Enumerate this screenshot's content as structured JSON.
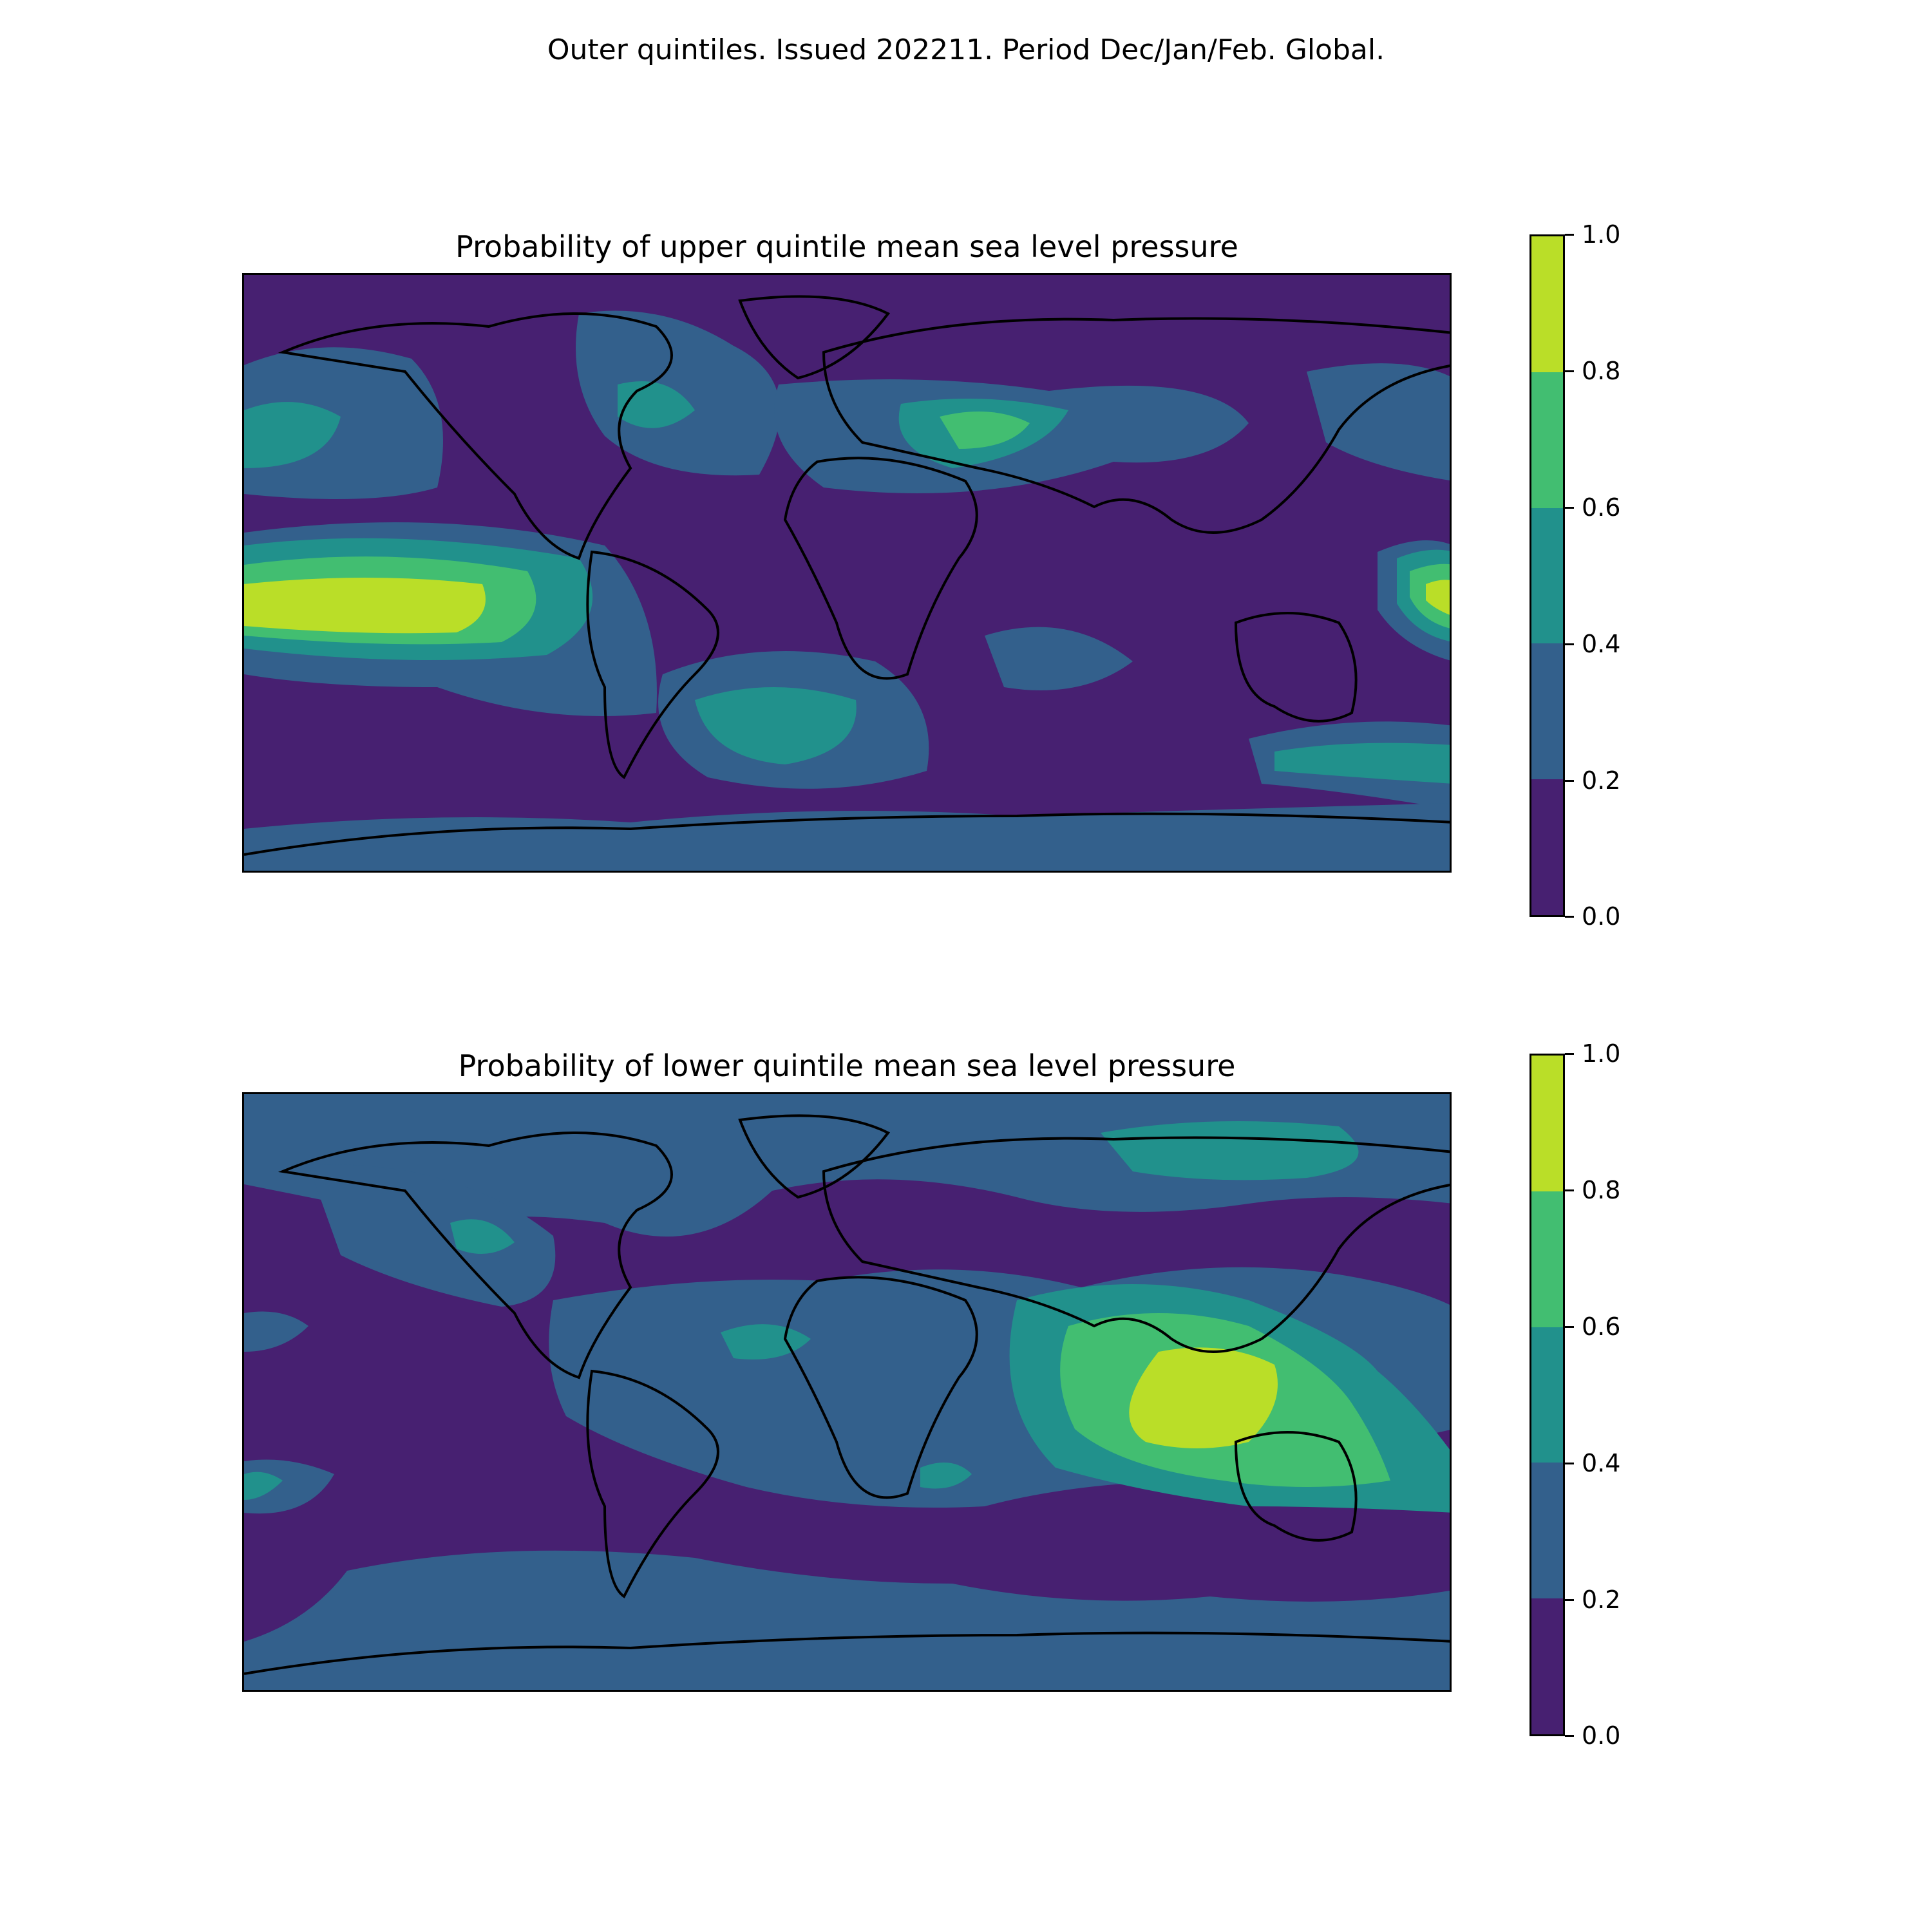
{
  "suptitle": "Outer quintiles. Issued 202211. Period Dec/Jan/Feb. Global.",
  "colors": {
    "bin_0_02": "#472071",
    "bin_02_04": "#33608c",
    "bin_04_06": "#21918c",
    "bin_06_08": "#42be71",
    "bin_08_10": "#bade28",
    "coastline": "#000000"
  },
  "panels": [
    {
      "title": "Probability of upper quintile mean sea level pressure",
      "colorbar": {
        "ticks": [
          "1.0",
          "0.8",
          "0.6",
          "0.4",
          "0.2",
          "0.0"
        ]
      }
    },
    {
      "title": "Probability of lower quintile mean sea level pressure",
      "colorbar": {
        "ticks": [
          "1.0",
          "0.8",
          "0.6",
          "0.4",
          "0.2",
          "0.0"
        ]
      }
    }
  ],
  "chart_data": [
    {
      "type": "heatmap",
      "title": "Probability of upper quintile mean sea level pressure",
      "projection": "equirectangular-global",
      "levels": [
        0.0,
        0.2,
        0.4,
        0.6,
        0.8,
        1.0
      ],
      "colormap": "viridis",
      "colorbar_range": [
        0.0,
        1.0
      ],
      "regions": [
        {
          "area": "subtropical east Pacific",
          "value_range": [
            0.8,
            1.0
          ]
        },
        {
          "area": "western tropical Pacific near New Guinea",
          "value_range": [
            0.8,
            1.0
          ]
        },
        {
          "area": "Mediterranean / Middle East",
          "value_range": [
            0.6,
            0.8
          ]
        },
        {
          "area": "South Atlantic",
          "value_range": [
            0.4,
            0.6
          ]
        },
        {
          "area": "Antarctic margin",
          "value_range": [
            0.2,
            0.4
          ]
        }
      ]
    },
    {
      "type": "heatmap",
      "title": "Probability of lower quintile mean sea level pressure",
      "projection": "equirectangular-global",
      "levels": [
        0.0,
        0.2,
        0.4,
        0.6,
        0.8,
        1.0
      ],
      "colormap": "viridis",
      "colorbar_range": [
        0.0,
        1.0
      ],
      "regions": [
        {
          "area": "Maritime Continent / northern Australia",
          "value_range": [
            0.8,
            1.0
          ]
        },
        {
          "area": "eastern Indian Ocean",
          "value_range": [
            0.6,
            0.8
          ]
        },
        {
          "area": "northern Siberia",
          "value_range": [
            0.4,
            0.6
          ]
        },
        {
          "area": "central Pacific",
          "value_range": [
            0.0,
            0.2
          ]
        }
      ]
    }
  ]
}
